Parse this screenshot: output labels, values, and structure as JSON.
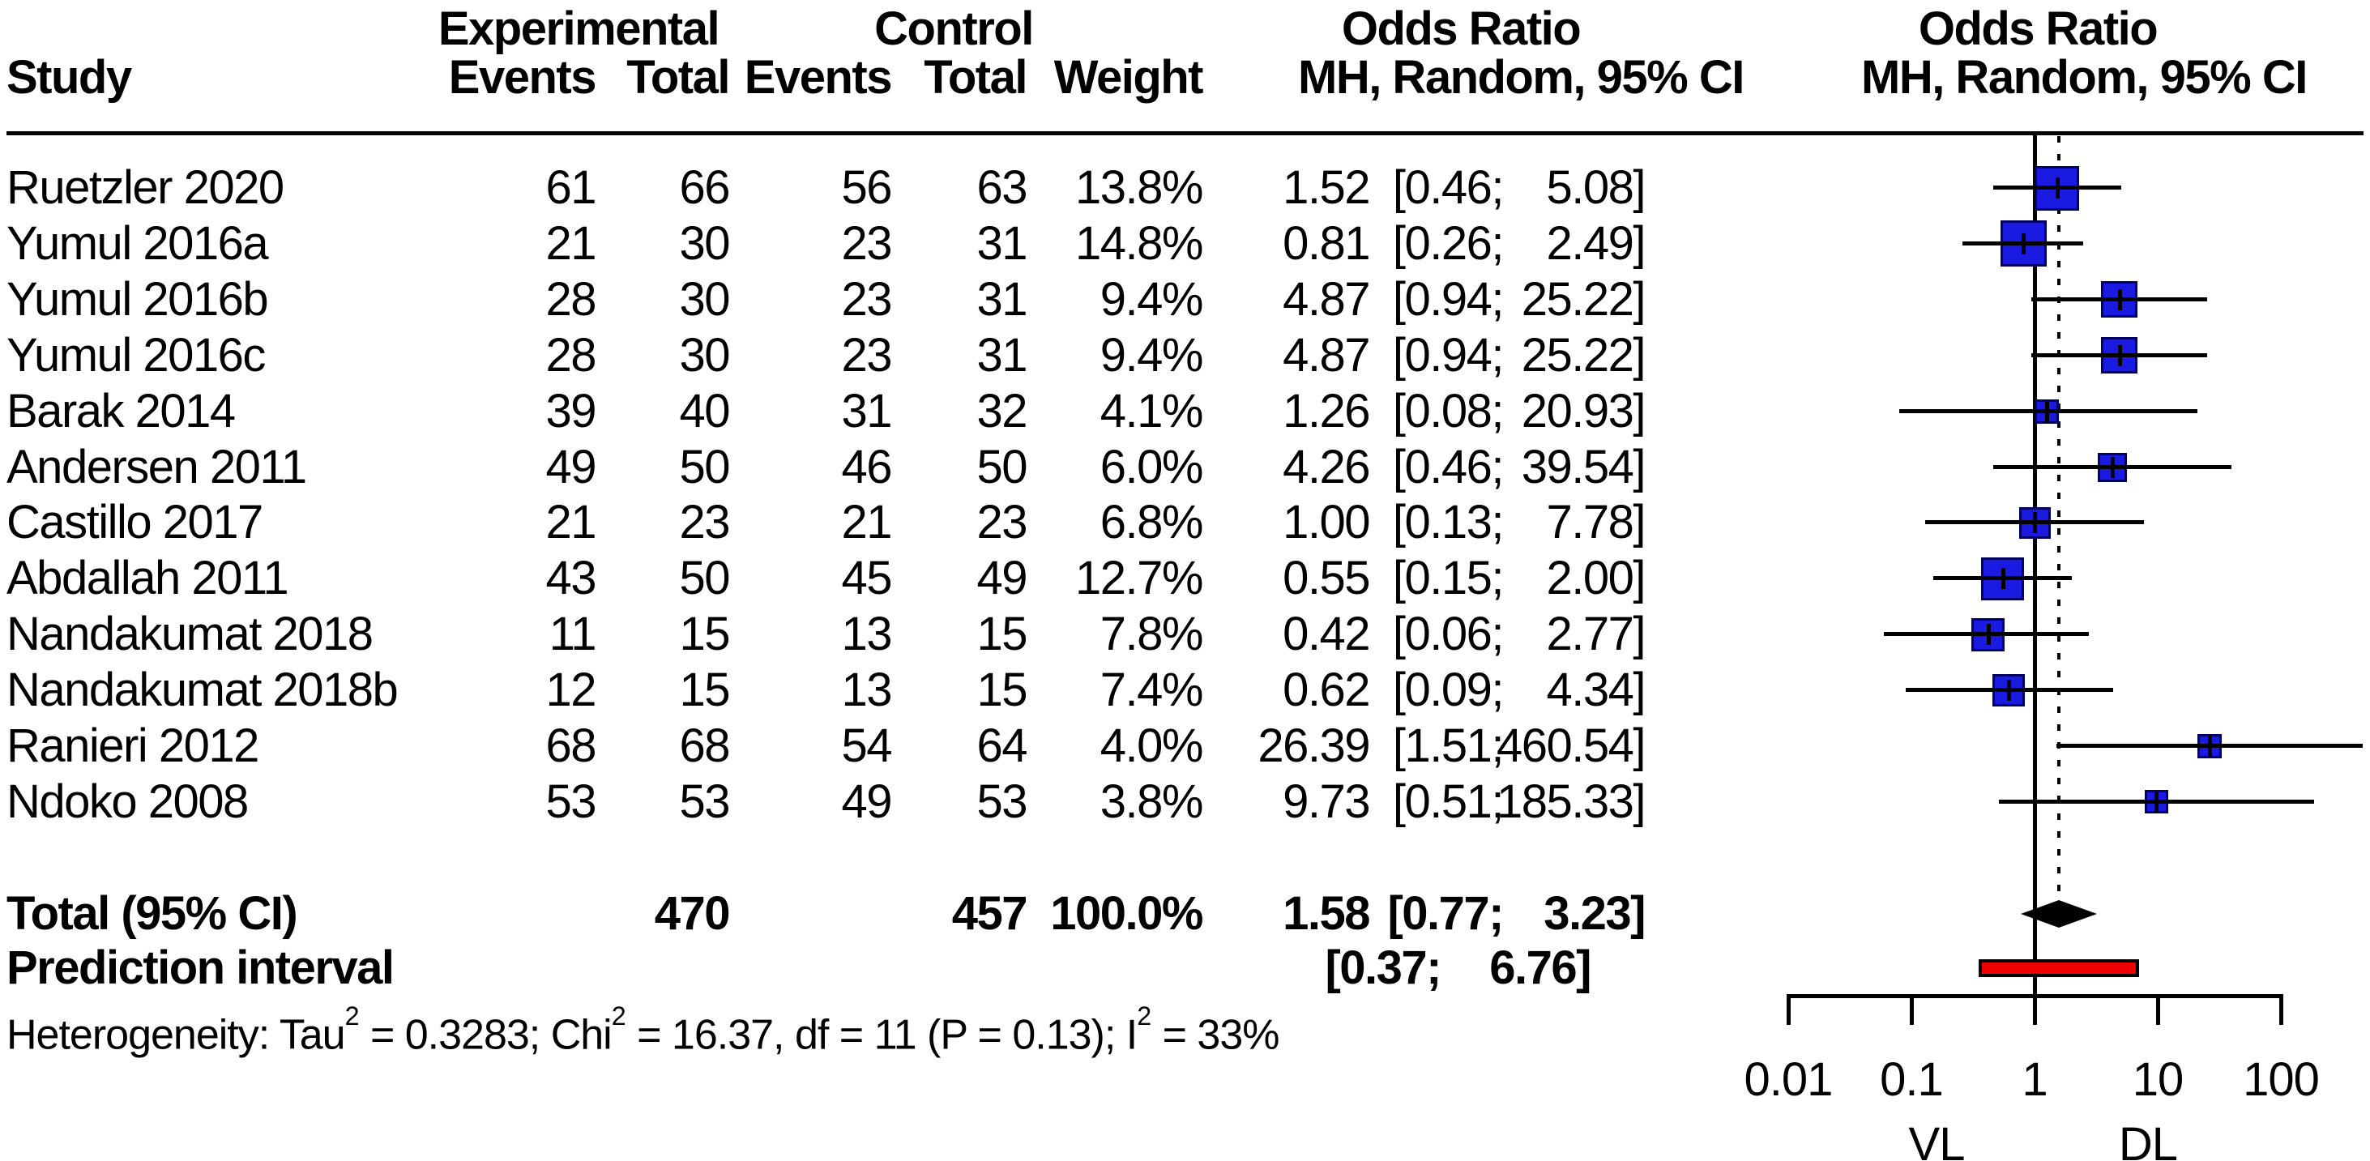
{
  "header": {
    "study": "Study",
    "experimental": "Experimental",
    "control": "Control",
    "odds_ratio": "Odds Ratio",
    "events": "Events",
    "total": "Total",
    "weight": "Weight",
    "mh_random_ci": "MH, Random, 95% CI"
  },
  "colors": {
    "square_fill": "#1a1ae0",
    "square_border": "#000066",
    "prediction_fill": "#ee0000",
    "diamond": "#000000",
    "line": "#000000"
  },
  "chart_data": {
    "type": "forest",
    "effect_measure": "Odds Ratio",
    "model": "MH, Random, 95% CI",
    "x_axis": {
      "scale": "log",
      "ticks": [
        0.01,
        0.1,
        1,
        10,
        100
      ],
      "tick_labels": [
        "0.01",
        "0.1",
        "1",
        "10",
        "100"
      ],
      "group_label_left": "VL",
      "group_label_right": "DL"
    },
    "reference_line": 1,
    "pooled_line": 1.58,
    "studies": [
      {
        "name": "Ruetzler 2020",
        "exp_events": "61",
        "exp_total": "66",
        "ctrl_events": "56",
        "ctrl_total": "63",
        "weight_label": "13.8%",
        "weight": 13.8,
        "or_label": "1.52",
        "ci_low_label": "[0.46;",
        "ci_high_label": "5.08]",
        "or": 1.52,
        "ci_low": 0.46,
        "ci_high": 5.08
      },
      {
        "name": "Yumul 2016a",
        "exp_events": "21",
        "exp_total": "30",
        "ctrl_events": "23",
        "ctrl_total": "31",
        "weight_label": "14.8%",
        "weight": 14.8,
        "or_label": "0.81",
        "ci_low_label": "[0.26;",
        "ci_high_label": "2.49]",
        "or": 0.81,
        "ci_low": 0.26,
        "ci_high": 2.49
      },
      {
        "name": "Yumul 2016b",
        "exp_events": "28",
        "exp_total": "30",
        "ctrl_events": "23",
        "ctrl_total": "31",
        "weight_label": "9.4%",
        "weight": 9.4,
        "or_label": "4.87",
        "ci_low_label": "[0.94;",
        "ci_high_label": "25.22]",
        "or": 4.87,
        "ci_low": 0.94,
        "ci_high": 25.22
      },
      {
        "name": "Yumul 2016c",
        "exp_events": "28",
        "exp_total": "30",
        "ctrl_events": "23",
        "ctrl_total": "31",
        "weight_label": "9.4%",
        "weight": 9.4,
        "or_label": "4.87",
        "ci_low_label": "[0.94;",
        "ci_high_label": "25.22]",
        "or": 4.87,
        "ci_low": 0.94,
        "ci_high": 25.22
      },
      {
        "name": "Barak 2014",
        "exp_events": "39",
        "exp_total": "40",
        "ctrl_events": "31",
        "ctrl_total": "32",
        "weight_label": "4.1%",
        "weight": 4.1,
        "or_label": "1.26",
        "ci_low_label": "[0.08;",
        "ci_high_label": "20.93]",
        "or": 1.26,
        "ci_low": 0.08,
        "ci_high": 20.93
      },
      {
        "name": "Andersen 2011",
        "exp_events": "49",
        "exp_total": "50",
        "ctrl_events": "46",
        "ctrl_total": "50",
        "weight_label": "6.0%",
        "weight": 6.0,
        "or_label": "4.26",
        "ci_low_label": "[0.46;",
        "ci_high_label": "39.54]",
        "or": 4.26,
        "ci_low": 0.46,
        "ci_high": 39.54
      },
      {
        "name": "Castillo 2017",
        "exp_events": "21",
        "exp_total": "23",
        "ctrl_events": "21",
        "ctrl_total": "23",
        "weight_label": "6.8%",
        "weight": 6.8,
        "or_label": "1.00",
        "ci_low_label": "[0.13;",
        "ci_high_label": "7.78]",
        "or": 1.0,
        "ci_low": 0.13,
        "ci_high": 7.78
      },
      {
        "name": "Abdallah 2011",
        "exp_events": "43",
        "exp_total": "50",
        "ctrl_events": "45",
        "ctrl_total": "49",
        "weight_label": "12.7%",
        "weight": 12.7,
        "or_label": "0.55",
        "ci_low_label": "[0.15;",
        "ci_high_label": "2.00]",
        "or": 0.55,
        "ci_low": 0.15,
        "ci_high": 2.0
      },
      {
        "name": "Nandakumat 2018",
        "exp_events": "11",
        "exp_total": "15",
        "ctrl_events": "13",
        "ctrl_total": "15",
        "weight_label": "7.8%",
        "weight": 7.8,
        "or_label": "0.42",
        "ci_low_label": "[0.06;",
        "ci_high_label": "2.77]",
        "or": 0.42,
        "ci_low": 0.06,
        "ci_high": 2.77
      },
      {
        "name": "Nandakumat 2018b",
        "exp_events": "12",
        "exp_total": "15",
        "ctrl_events": "13",
        "ctrl_total": "15",
        "weight_label": "7.4%",
        "weight": 7.4,
        "or_label": "0.62",
        "ci_low_label": "[0.09;",
        "ci_high_label": "4.34]",
        "or": 0.62,
        "ci_low": 0.09,
        "ci_high": 4.34
      },
      {
        "name": "Ranieri 2012",
        "exp_events": "68",
        "exp_total": "68",
        "ctrl_events": "54",
        "ctrl_total": "64",
        "weight_label": "4.0%",
        "weight": 4.0,
        "or_label": "26.39",
        "ci_low_label": "[1.51;",
        "ci_high_label": "460.54]",
        "or": 26.39,
        "ci_low": 1.51,
        "ci_high": 460.54
      },
      {
        "name": "Ndoko 2008",
        "exp_events": "53",
        "exp_total": "53",
        "ctrl_events": "49",
        "ctrl_total": "53",
        "weight_label": "3.8%",
        "weight": 3.8,
        "or_label": "9.73",
        "ci_low_label": "[0.51;",
        "ci_high_label": "185.33]",
        "or": 9.73,
        "ci_low": 0.51,
        "ci_high": 185.33
      }
    ],
    "total": {
      "label": "Total (95% CI)",
      "exp_total": "470",
      "ctrl_total": "457",
      "weight_label": "100.0%",
      "or_label": "1.58",
      "ci_low_label": "[0.77;",
      "ci_high_label": "3.23]",
      "or": 1.58,
      "ci_low": 0.77,
      "ci_high": 3.23
    },
    "prediction_interval": {
      "label": "Prediction interval",
      "ci_low_label": "[0.37;",
      "ci_high_label": "6.76]",
      "ci_low": 0.37,
      "ci_high": 6.76
    },
    "heterogeneity": {
      "segments": [
        {
          "text": "Heterogeneity: Tau"
        },
        {
          "sup": "2"
        },
        {
          "text": " = 0.3283; Chi"
        },
        {
          "sup": "2"
        },
        {
          "text": " = 16.37, df = 11 (P = 0.13); I"
        },
        {
          "sup": "2"
        },
        {
          "text": " = 33%"
        }
      ]
    }
  }
}
